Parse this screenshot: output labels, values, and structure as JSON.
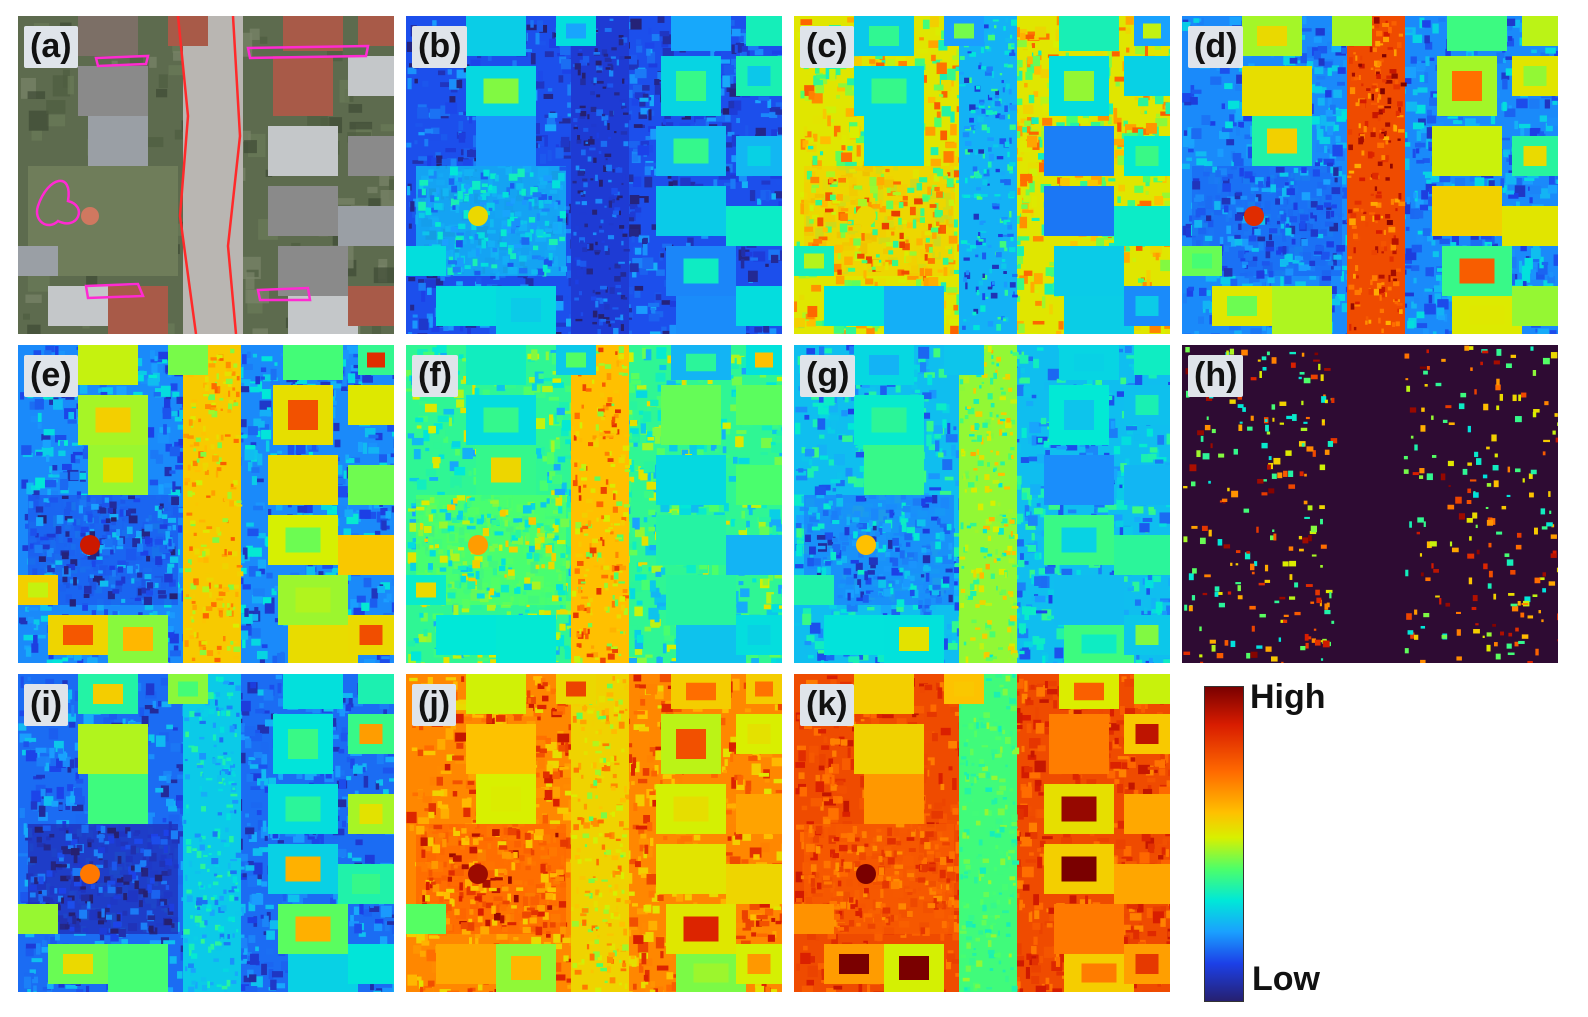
{
  "panels": [
    {
      "label": "(a)",
      "scheme": "photo"
    },
    {
      "label": "(b)",
      "scheme": "blue"
    },
    {
      "label": "(c)",
      "scheme": "warmmix"
    },
    {
      "label": "(d)",
      "scheme": "roadred"
    },
    {
      "label": "(e)",
      "scheme": "roadyellow"
    },
    {
      "label": "(f)",
      "scheme": "cyanmix"
    },
    {
      "label": "(g)",
      "scheme": "cyanblue"
    },
    {
      "label": "(h)",
      "scheme": "darkpurple"
    },
    {
      "label": "(i)",
      "scheme": "darkcyan"
    },
    {
      "label": "(j)",
      "scheme": "orange"
    },
    {
      "label": "(k)",
      "scheme": "red"
    }
  ],
  "colorbar": {
    "high_label": "High",
    "low_label": "Low",
    "colors": [
      "#7a0000",
      "#ff6a00",
      "#ffc000",
      "#4cff6a",
      "#00e8d8",
      "#1aa0ff",
      "#262070"
    ]
  }
}
